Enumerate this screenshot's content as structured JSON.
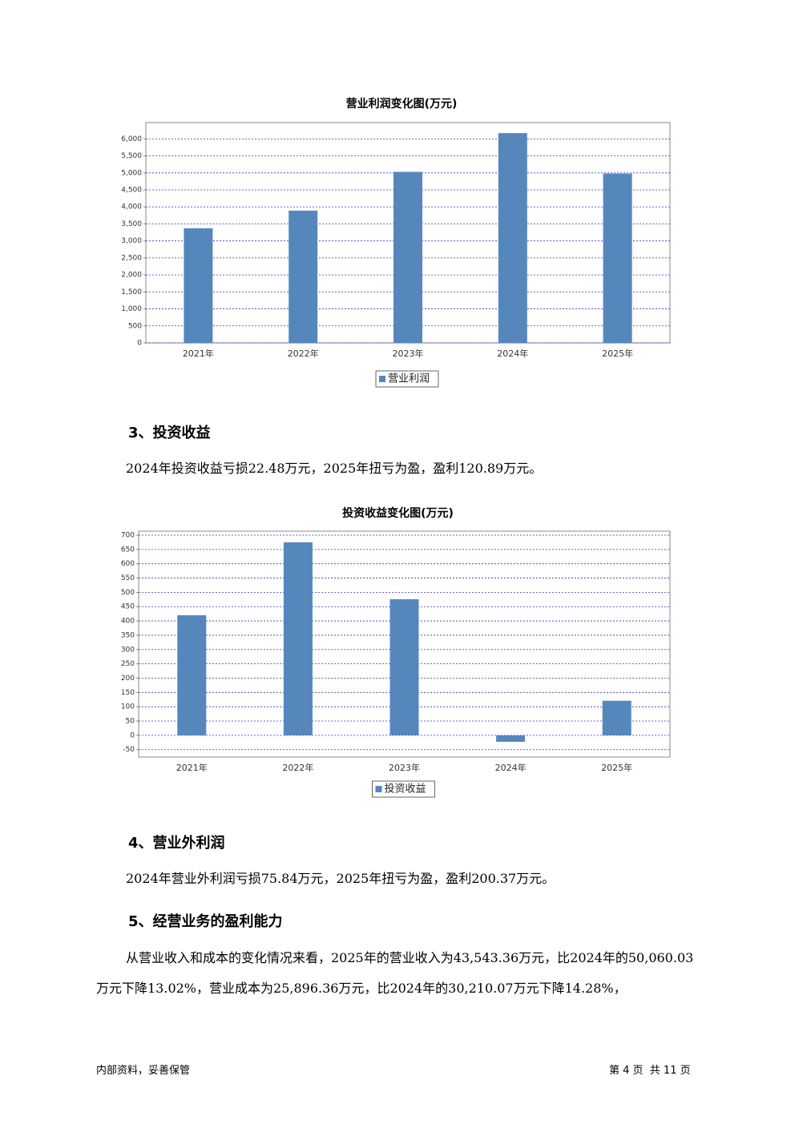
{
  "chart_data": [
    {
      "type": "bar",
      "title": "营业利润变化图(万元)",
      "categories": [
        "2021年",
        "2022年",
        "2023年",
        "2024年",
        "2025年"
      ],
      "series": [
        {
          "name": "营业利润",
          "color": "#5687bc",
          "values": [
            3370,
            3890,
            5030,
            6170,
            4980
          ]
        }
      ],
      "ylim": [
        0,
        6480
      ],
      "yticks": [
        0,
        500,
        {
          "value": 1000,
          "label": "1,000"
        },
        {
          "value": 1500,
          "label": "1,500"
        },
        {
          "value": 2000,
          "label": "2,000"
        },
        {
          "value": 2500,
          "label": "2,500"
        },
        {
          "value": 3000,
          "label": "3,000"
        },
        {
          "value": 3500,
          "label": "3,500"
        },
        {
          "value": 4000,
          "label": "4,000"
        },
        {
          "value": 4500,
          "label": "4,500"
        },
        {
          "value": 5000,
          "label": "5,000"
        },
        {
          "value": 5500,
          "label": "5,500"
        },
        {
          "value": 6000,
          "label": "6,000"
        }
      ],
      "grid": true,
      "legend": "bottom"
    },
    {
      "type": "bar",
      "title": "投资收益变化图(万元)",
      "categories": [
        "2021年",
        "2022年",
        "2023年",
        "2024年",
        "2025年"
      ],
      "series": [
        {
          "name": "投资收益",
          "color": "#5687bc",
          "values": [
            420,
            675,
            476,
            -22.48,
            120.89
          ]
        }
      ],
      "ylim": [
        -76,
        714
      ],
      "yticks": [
        -50,
        0,
        50,
        100,
        150,
        200,
        250,
        300,
        350,
        400,
        450,
        500,
        550,
        600,
        650,
        700
      ],
      "grid": true,
      "legend": "bottom"
    }
  ],
  "sections": [
    {
      "heading": "3、投资收益",
      "paragraphs": [
        "2024年投资收益亏损22.48万元，2025年扭亏为盈，盈利120.89万元。"
      ]
    },
    {
      "heading": "4、营业外利润",
      "paragraphs": [
        "2024年营业外利润亏损75.84万元，2025年扭亏为盈，盈利200.37万元。"
      ]
    },
    {
      "heading": "5、经营业务的盈利能力",
      "paragraphs": [
        "从营业收入和成本的变化情况来看，2025年的营业收入为43,543.36万元，比2024年的50,060.03万元下降13.02%，营业成本为25,896.36万元，比2024年的30,210.07万元下降14.28%，"
      ]
    }
  ],
  "footer": {
    "left": "内部资料，妥善保管",
    "page": "第 4 页  共 11 页"
  }
}
